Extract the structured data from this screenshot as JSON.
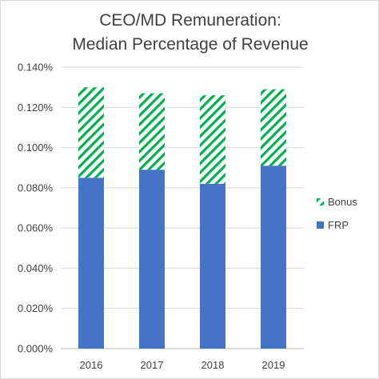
{
  "chart_data": {
    "type": "bar",
    "stacked": true,
    "title_lines": [
      "CEO/MD Remuneration:",
      "Median Percentage of Revenue"
    ],
    "categories": [
      "2016",
      "2017",
      "2018",
      "2019"
    ],
    "series": [
      {
        "name": "FRP",
        "values": [
          0.085,
          0.089,
          0.082,
          0.091
        ],
        "color": "#4472c4",
        "pattern": "solid"
      },
      {
        "name": "Bonus",
        "values": [
          0.045,
          0.038,
          0.044,
          0.038
        ],
        "color": "#00b050",
        "pattern": "diagonal-stripes"
      }
    ],
    "ylim": [
      0,
      0.14
    ],
    "yticks": [
      "0.000%",
      "0.020%",
      "0.040%",
      "0.060%",
      "0.080%",
      "0.100%",
      "0.120%",
      "0.140%"
    ],
    "ytick_values": [
      0,
      0.02,
      0.04,
      0.06,
      0.08,
      0.1,
      0.12,
      0.14
    ],
    "grid": true,
    "legend_position": "right",
    "legend_order": [
      "Bonus",
      "FRP"
    ]
  }
}
